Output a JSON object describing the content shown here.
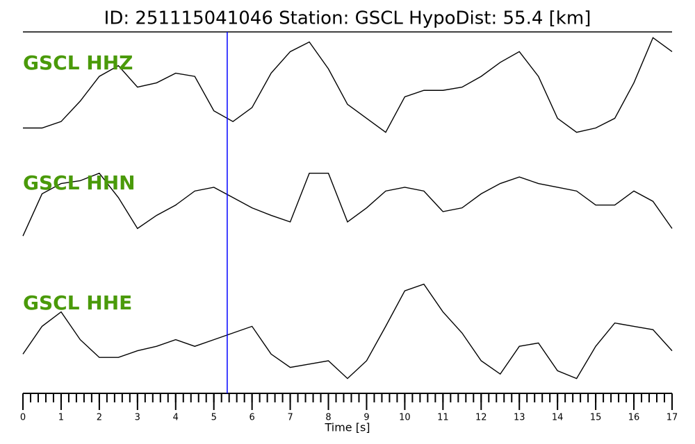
{
  "chart_data": {
    "type": "line",
    "title": "ID: 251115041046   Station: GSCL   HypoDist:    55.4 [km]",
    "xlabel": "Time [s]",
    "x": [
      0,
      0.5,
      1,
      1.5,
      2,
      2.5,
      3,
      3.5,
      4,
      4.5,
      5,
      5.5,
      6,
      6.5,
      7,
      7.5,
      8,
      8.5,
      9,
      9.5,
      10,
      10.5,
      11,
      11.5,
      12,
      12.5,
      13,
      13.5,
      14,
      14.5,
      15,
      15.5,
      16,
      16.5,
      17
    ],
    "series": [
      {
        "name": "GSCL HHZ",
        "color": "#000000",
        "values": [
          10,
          10,
          16,
          35,
          58,
          68,
          48,
          52,
          61,
          58,
          26,
          16,
          29,
          61,
          81,
          90,
          65,
          32,
          19,
          6,
          39,
          45,
          45,
          48,
          58,
          71,
          81,
          58,
          19,
          6,
          10,
          19,
          52,
          94,
          81
        ]
      },
      {
        "name": "GSCL HHN",
        "color": "#000000",
        "values": [
          11,
          56,
          67,
          70,
          78,
          52,
          19,
          33,
          44,
          59,
          63,
          52,
          41,
          33,
          26,
          78,
          78,
          26,
          41,
          59,
          63,
          59,
          37,
          41,
          56,
          67,
          74,
          67,
          63,
          59,
          44,
          44,
          59,
          48,
          19
        ]
      },
      {
        "name": "GSCL HHE",
        "color": "#000000",
        "values": [
          31,
          56,
          69,
          44,
          28,
          28,
          34,
          38,
          44,
          38,
          44,
          50,
          56,
          31,
          19,
          22,
          25,
          9,
          25,
          56,
          88,
          94,
          69,
          50,
          25,
          13,
          38,
          41,
          16,
          9,
          38,
          59,
          56,
          53,
          34
        ]
      }
    ],
    "label_color": "#4a9a0a",
    "ylim": [
      0,
      100
    ],
    "xlim": [
      0,
      17
    ],
    "xticks": [
      0,
      1,
      2,
      3,
      4,
      5,
      6,
      7,
      8,
      9,
      10,
      11,
      12,
      13,
      14,
      15,
      16,
      17
    ],
    "xminor": 0.2,
    "pick_time": 5.35,
    "pick_color": "#0000ff"
  }
}
